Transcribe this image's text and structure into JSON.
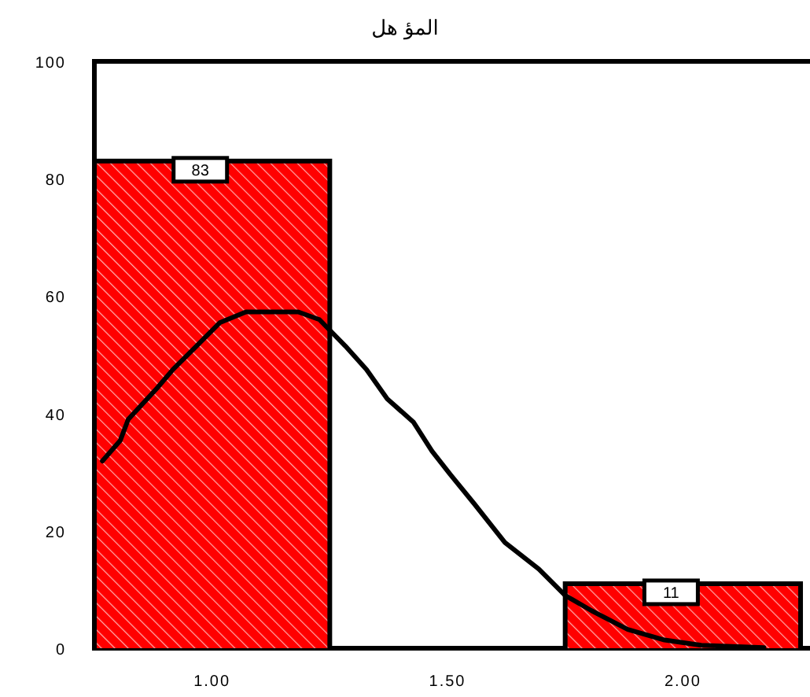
{
  "chart_data": {
    "type": "histogram",
    "title": "المؤ هل",
    "bins": [
      0.75,
      1.25,
      1.75,
      2.25
    ],
    "series": [
      {
        "color": "#ff0000",
        "values": [
          83,
          0,
          11
        ],
        "value_labels": [
          "83",
          null,
          "11"
        ]
      },
      {
        "type": "line",
        "color": "#000000",
        "x": [
          0.767,
          0.805,
          0.822,
          0.883,
          0.917,
          0.967,
          1.017,
          1.072,
          1.183,
          1.228,
          1.283,
          1.328,
          1.372,
          1.428,
          1.467,
          1.506,
          1.556,
          1.622,
          1.694,
          1.75,
          1.806,
          1.883,
          1.961,
          2.039,
          2.172
        ],
        "values": [
          31.9,
          35.4,
          39,
          44.3,
          47.5,
          51.5,
          55.5,
          57.3,
          57.3,
          56,
          51.5,
          47.5,
          42.5,
          38.5,
          33.6,
          29.6,
          24.7,
          18,
          13.5,
          9,
          6.4,
          3.2,
          1.4,
          0.5,
          0.1
        ]
      }
    ],
    "xlim": [
      0.75,
      2.27
    ],
    "ylim": [
      0,
      100
    ],
    "xticks": [
      {
        "value": 1,
        "label": "1.00"
      },
      {
        "value": 1.5,
        "label": "1.50"
      },
      {
        "value": 2,
        "label": "2.00"
      }
    ],
    "yticks": [
      0,
      20,
      40,
      60,
      80,
      100
    ],
    "grid": false
  }
}
